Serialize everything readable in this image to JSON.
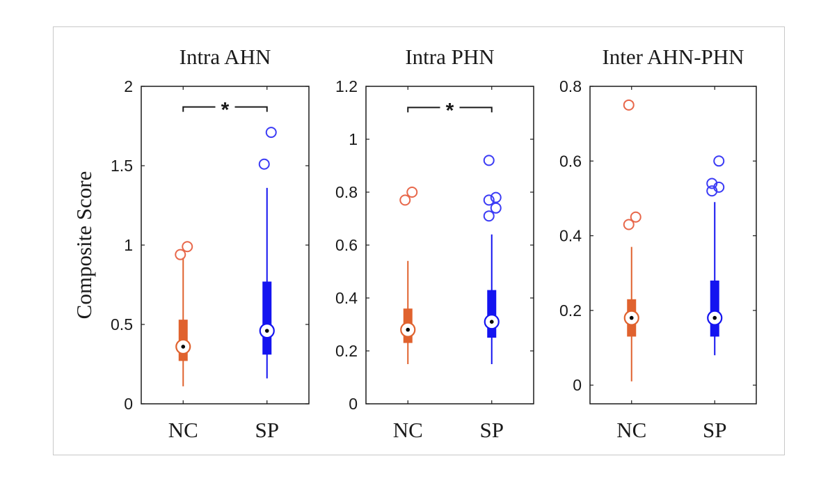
{
  "chart_data": {
    "type": "box",
    "ylabel": "Composite Score",
    "colors": {
      "NC": "#e0622e",
      "SP": "#1414f0",
      "outlier_NC": "#e8674a",
      "outlier_SP": "#3b3bf5"
    },
    "panels": [
      {
        "title": "Intra AHN",
        "ylim": [
          0,
          2
        ],
        "yticks": [
          0,
          0.5,
          1,
          1.5,
          2
        ],
        "ytick_labels": [
          "0",
          "0.5",
          "1",
          "1.5",
          "2"
        ],
        "categories": [
          "NC",
          "SP"
        ],
        "significance": {
          "label": "*",
          "between": [
            "NC",
            "SP"
          ],
          "level": 1.87
        },
        "boxes": [
          {
            "group": "NC",
            "whisker_low": 0.11,
            "q1": 0.27,
            "median": 0.36,
            "q3": 0.53,
            "whisker_high": 0.92,
            "outliers": [
              0.94,
              0.99
            ]
          },
          {
            "group": "SP",
            "whisker_low": 0.16,
            "q1": 0.31,
            "median": 0.46,
            "q3": 0.77,
            "whisker_high": 1.36,
            "outliers": [
              1.51,
              1.71
            ]
          }
        ]
      },
      {
        "title": "Intra PHN",
        "ylim": [
          0,
          1.2
        ],
        "yticks": [
          0,
          0.2,
          0.4,
          0.6,
          0.8,
          1.0,
          1.2
        ],
        "ytick_labels": [
          "0",
          "0.2",
          "0.4",
          "0.6",
          "0.8",
          "1",
          "1.2"
        ],
        "categories": [
          "NC",
          "SP"
        ],
        "significance": {
          "label": "*",
          "between": [
            "NC",
            "SP"
          ],
          "level": 1.12
        },
        "boxes": [
          {
            "group": "NC",
            "whisker_low": 0.15,
            "q1": 0.23,
            "median": 0.28,
            "q3": 0.36,
            "whisker_high": 0.54,
            "outliers": [
              0.77,
              0.8
            ]
          },
          {
            "group": "SP",
            "whisker_low": 0.15,
            "q1": 0.25,
            "median": 0.31,
            "q3": 0.43,
            "whisker_high": 0.64,
            "outliers": [
              0.71,
              0.74,
              0.77,
              0.78,
              0.92
            ]
          }
        ]
      },
      {
        "title": "Inter AHN-PHN",
        "ylim": [
          -0.05,
          0.8
        ],
        "yticks": [
          0,
          0.2,
          0.4,
          0.6,
          0.8
        ],
        "ytick_labels": [
          "0",
          "0.2",
          "0.4",
          "0.6",
          "0.8"
        ],
        "categories": [
          "NC",
          "SP"
        ],
        "boxes": [
          {
            "group": "NC",
            "whisker_low": 0.01,
            "q1": 0.13,
            "median": 0.18,
            "q3": 0.23,
            "whisker_high": 0.37,
            "outliers": [
              0.43,
              0.45,
              0.75
            ]
          },
          {
            "group": "SP",
            "whisker_low": 0.08,
            "q1": 0.13,
            "median": 0.18,
            "q3": 0.28,
            "whisker_high": 0.49,
            "outliers": [
              0.52,
              0.53,
              0.54,
              0.6
            ]
          }
        ]
      }
    ]
  }
}
